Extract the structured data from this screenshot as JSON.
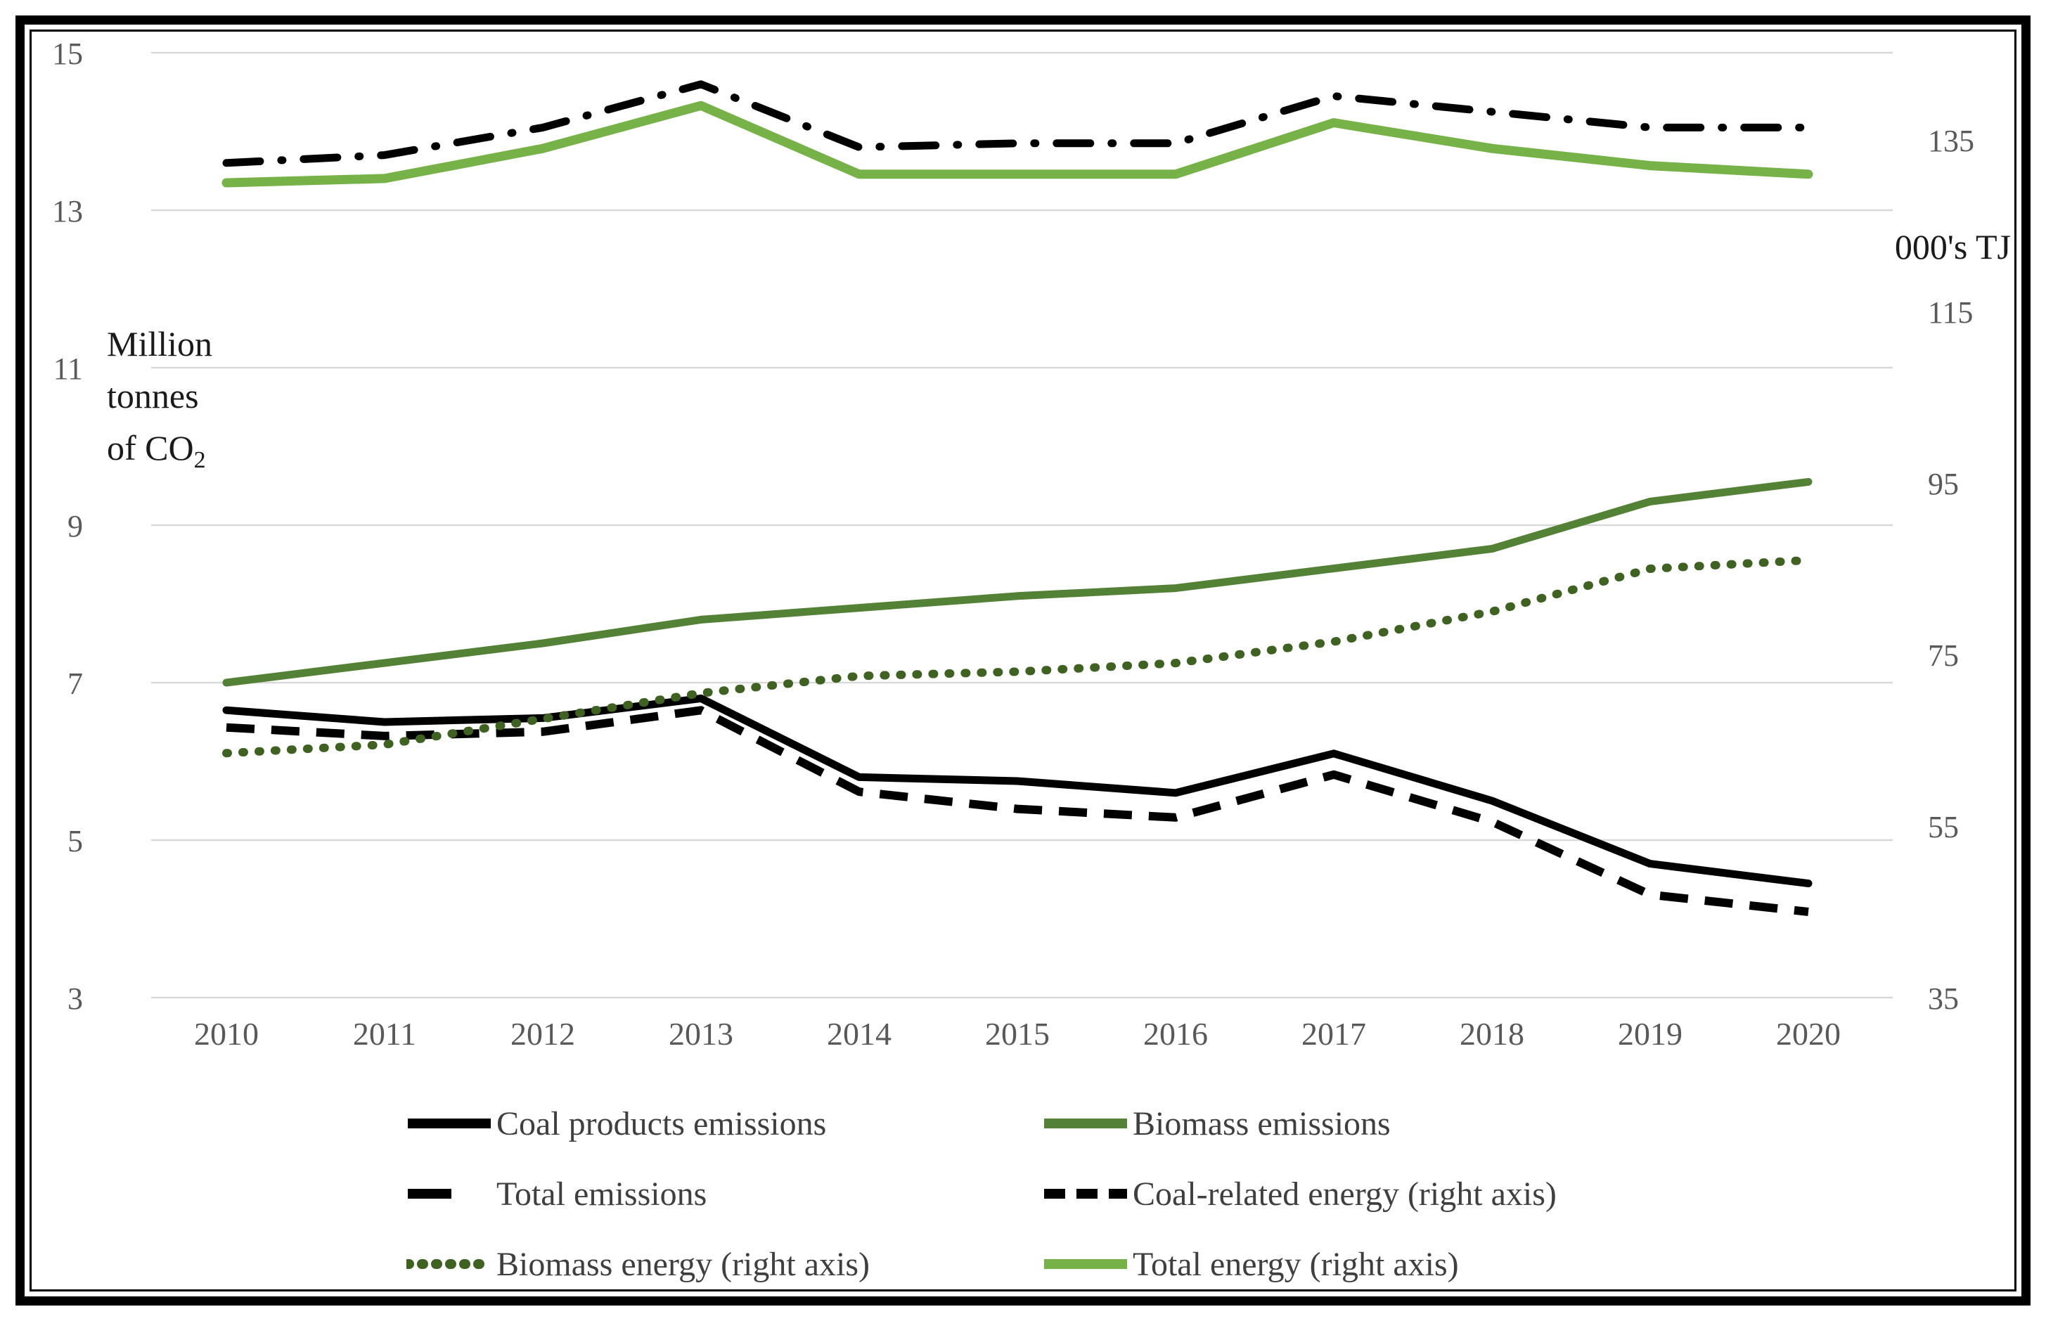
{
  "chart_data": {
    "type": "line",
    "title": "",
    "x_categories": [
      "2010",
      "2011",
      "2012",
      "2013",
      "2014",
      "2015",
      "2016",
      "2017",
      "2018",
      "2019",
      "2020"
    ],
    "left_axis": {
      "title_lines": [
        "Million",
        "tonnes"
      ],
      "title_line3_prefix": "of CO",
      "title_line3_sub": "2",
      "ticks": [
        15,
        13,
        11,
        9,
        7,
        5,
        3
      ],
      "max": 15,
      "min": 3
    },
    "right_axis": {
      "title": "000's TJ",
      "ticks": [
        135,
        115,
        95,
        75,
        55,
        35
      ],
      "max": 135,
      "min": 35
    },
    "grid": "horizontal-only",
    "legend_position": "bottom",
    "series": [
      {
        "label": "Coal products emissions",
        "axis": "left",
        "style": "solid",
        "color": "#000000",
        "values": [
          6.65,
          6.5,
          6.55,
          6.8,
          5.8,
          5.75,
          5.6,
          6.1,
          5.5,
          4.7,
          4.45
        ]
      },
      {
        "label": "Biomass emissions",
        "axis": "left",
        "style": "solid",
        "color": "#538135",
        "values": [
          7.0,
          7.25,
          7.5,
          7.8,
          7.95,
          8.1,
          8.2,
          8.45,
          8.7,
          9.3,
          9.55
        ]
      },
      {
        "label": "Total emissions",
        "axis": "left",
        "style": "dash-dot",
        "color": "#000000",
        "values": [
          13.6,
          13.7,
          14.05,
          14.6,
          13.8,
          13.85,
          13.85,
          14.45,
          14.25,
          14.05,
          14.05
        ]
      },
      {
        "label": "Coal-related energy (right axis)",
        "axis": "right",
        "style": "dashed",
        "color": "#000000",
        "values": [
          66.5,
          65.5,
          66,
          68.5,
          59,
          57,
          56,
          61,
          55.5,
          47,
          45
        ]
      },
      {
        "label": "Biomass energy (right axis)",
        "axis": "right",
        "style": "dotted",
        "color": "#3f6121",
        "values": [
          63.5,
          64.5,
          67.5,
          70.5,
          72.5,
          73,
          74,
          76.5,
          80,
          85,
          86
        ]
      },
      {
        "label": "Total energy (right axis)",
        "axis": "right",
        "style": "solid-thick",
        "color": "#76b247",
        "values": [
          130,
          130.5,
          134,
          139,
          131,
          131,
          131,
          137,
          134,
          132,
          131
        ]
      }
    ],
    "colors": {
      "gridline": "#d9d9d9",
      "tick_text": "#595959",
      "axis_title_text": "#1a1a1a",
      "legend_text": "#3f3f3f",
      "dark_green": "#538135",
      "light_green": "#76b247",
      "dotted_green": "#3f6121"
    }
  }
}
